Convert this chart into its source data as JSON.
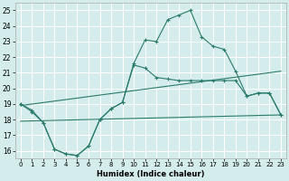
{
  "title": "",
  "xlabel": "Humidex (Indice chaleur)",
  "xlim": [
    -0.5,
    23.5
  ],
  "ylim": [
    15.5,
    25.5
  ],
  "xticks": [
    0,
    1,
    2,
    3,
    4,
    5,
    6,
    7,
    8,
    9,
    10,
    11,
    12,
    13,
    14,
    15,
    16,
    17,
    18,
    19,
    20,
    21,
    22,
    23
  ],
  "yticks": [
    16,
    17,
    18,
    19,
    20,
    21,
    22,
    23,
    24,
    25
  ],
  "bg_color": "#d4ecec",
  "grid_color": "#ffffff",
  "line_color": "#2a7a6a",
  "line1_x": [
    0,
    1,
    2,
    3,
    4,
    5,
    6,
    7,
    8,
    9,
    10,
    11,
    12,
    13,
    14,
    15,
    16,
    17,
    18,
    19,
    20,
    21,
    22,
    23
  ],
  "line1_y": [
    19.0,
    18.6,
    17.8,
    16.1,
    15.8,
    15.7,
    16.3,
    18.0,
    18.7,
    19.1,
    21.6,
    23.1,
    23.0,
    24.4,
    24.7,
    25.0,
    23.3,
    22.7,
    22.5,
    21.1,
    19.5,
    19.7,
    19.7,
    18.3
  ],
  "line2_x": [
    0,
    1,
    2,
    3,
    4,
    5,
    6,
    7,
    8,
    9,
    10,
    11,
    12,
    13,
    14,
    15,
    16,
    17,
    18,
    19,
    20,
    21,
    22,
    23
  ],
  "line2_y": [
    19.0,
    18.5,
    17.8,
    16.1,
    15.8,
    15.7,
    16.3,
    18.0,
    18.7,
    19.1,
    21.5,
    21.3,
    20.7,
    20.6,
    20.5,
    20.5,
    20.5,
    20.5,
    20.5,
    20.5,
    19.5,
    19.7,
    19.7,
    18.3
  ],
  "line3_x": [
    0,
    23
  ],
  "line3_y": [
    18.9,
    21.1
  ],
  "line4_x": [
    0,
    23
  ],
  "line4_y": [
    17.9,
    18.3
  ],
  "figsize": [
    3.2,
    2.0
  ],
  "dpi": 100
}
